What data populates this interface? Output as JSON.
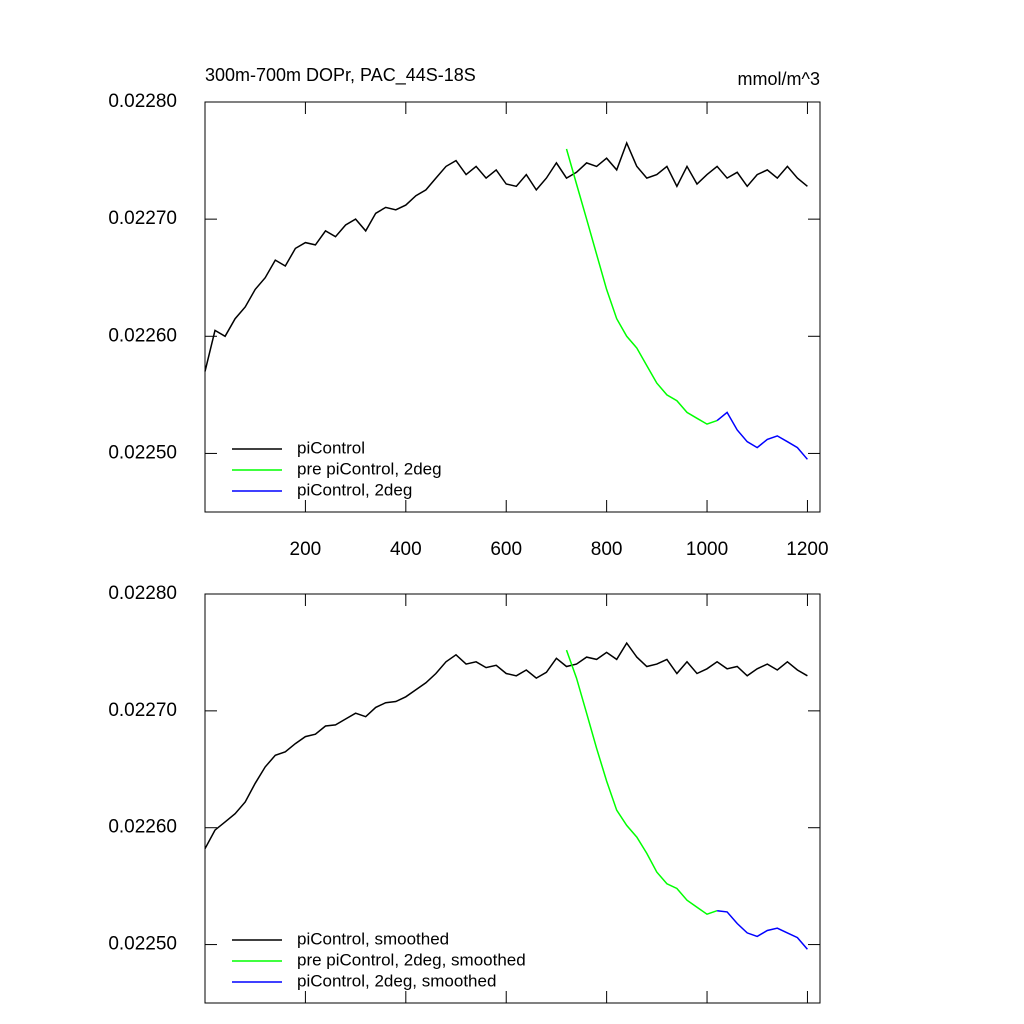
{
  "chart_data": [
    {
      "type": "line",
      "title": "300m-700m DOPr, PAC_44S-18S",
      "units": "mmol/m^3",
      "xlim": [
        0,
        1225
      ],
      "xticks": [
        200,
        400,
        600,
        800,
        1000,
        1200
      ],
      "xtick_labels": true,
      "ylim": [
        0.02245,
        0.0228
      ],
      "yticks": [
        {
          "value": 0.0225,
          "label": "0.02250"
        },
        {
          "value": 0.0226,
          "label": "0.02260"
        },
        {
          "value": 0.0227,
          "label": "0.02270"
        },
        {
          "value": 0.0228,
          "label": "0.02280"
        }
      ],
      "legend": "lower left",
      "series": [
        {
          "name": "piControl",
          "color": "#000000",
          "x": [
            0,
            20,
            40,
            60,
            80,
            100,
            120,
            140,
            160,
            180,
            200,
            220,
            240,
            260,
            280,
            300,
            320,
            340,
            360,
            380,
            400,
            420,
            440,
            460,
            480,
            500,
            520,
            540,
            560,
            580,
            600,
            620,
            640,
            660,
            680,
            700,
            720,
            740,
            760,
            780,
            800,
            820,
            840,
            860,
            880,
            900,
            920,
            940,
            960,
            980,
            1000,
            1020,
            1040,
            1060,
            1080,
            1100,
            1120,
            1140,
            1160,
            1180,
            1200
          ],
          "values": [
            0.02257,
            0.022605,
            0.0226,
            0.022615,
            0.022625,
            0.02264,
            0.02265,
            0.022665,
            0.02266,
            0.022675,
            0.02268,
            0.022678,
            0.02269,
            0.022685,
            0.022695,
            0.0227,
            0.02269,
            0.022705,
            0.02271,
            0.022708,
            0.022712,
            0.02272,
            0.022725,
            0.022735,
            0.022745,
            0.02275,
            0.022738,
            0.022745,
            0.022735,
            0.022742,
            0.02273,
            0.022728,
            0.022738,
            0.022725,
            0.022735,
            0.022748,
            0.022735,
            0.02274,
            0.022748,
            0.022745,
            0.022752,
            0.022742,
            0.022765,
            0.022745,
            0.022735,
            0.022738,
            0.022745,
            0.022728,
            0.022745,
            0.02273,
            0.022738,
            0.022745,
            0.022735,
            0.02274,
            0.022728,
            0.022738,
            0.022742,
            0.022735,
            0.022745,
            0.022735,
            0.022728
          ]
        },
        {
          "name": "pre piControl, 2deg",
          "color": "#00ff00",
          "x": [
            720,
            740,
            760,
            780,
            800,
            820,
            840,
            860,
            880,
            900,
            920,
            940,
            960,
            980,
            1000,
            1020
          ],
          "values": [
            0.02276,
            0.02273,
            0.0227,
            0.02267,
            0.02264,
            0.022615,
            0.0226,
            0.02259,
            0.022575,
            0.02256,
            0.02255,
            0.022545,
            0.022535,
            0.02253,
            0.022525,
            0.022528
          ]
        },
        {
          "name": "piControl, 2deg",
          "color": "#0000ff",
          "x": [
            1020,
            1040,
            1060,
            1080,
            1100,
            1120,
            1140,
            1160,
            1180,
            1200
          ],
          "values": [
            0.022528,
            0.022535,
            0.02252,
            0.02251,
            0.022505,
            0.022512,
            0.022515,
            0.02251,
            0.022505,
            0.022495
          ]
        }
      ]
    },
    {
      "type": "line",
      "xlim": [
        0,
        1225
      ],
      "xticks": [
        200,
        400,
        600,
        800,
        1000,
        1200
      ],
      "xtick_labels": false,
      "ylim": [
        0.02245,
        0.0228
      ],
      "yticks": [
        {
          "value": 0.0225,
          "label": "0.02250"
        },
        {
          "value": 0.0226,
          "label": "0.02260"
        },
        {
          "value": 0.0227,
          "label": "0.02270"
        },
        {
          "value": 0.0228,
          "label": "0.02280"
        }
      ],
      "legend": "lower left",
      "series": [
        {
          "name": "piControl, smoothed",
          "color": "#000000",
          "x": [
            0,
            20,
            40,
            60,
            80,
            100,
            120,
            140,
            160,
            180,
            200,
            220,
            240,
            260,
            280,
            300,
            320,
            340,
            360,
            380,
            400,
            420,
            440,
            460,
            480,
            500,
            520,
            540,
            560,
            580,
            600,
            620,
            640,
            660,
            680,
            700,
            720,
            740,
            760,
            780,
            800,
            820,
            840,
            860,
            880,
            900,
            920,
            940,
            960,
            980,
            1000,
            1020,
            1040,
            1060,
            1080,
            1100,
            1120,
            1140,
            1160,
            1180,
            1200
          ],
          "values": [
            0.022582,
            0.022598,
            0.022605,
            0.022612,
            0.022622,
            0.022638,
            0.022652,
            0.022662,
            0.022665,
            0.022672,
            0.022678,
            0.02268,
            0.022687,
            0.022688,
            0.022693,
            0.022698,
            0.022695,
            0.022703,
            0.022707,
            0.022708,
            0.022712,
            0.022718,
            0.022724,
            0.022732,
            0.022742,
            0.022748,
            0.02274,
            0.022742,
            0.022737,
            0.022739,
            0.022732,
            0.02273,
            0.022735,
            0.022728,
            0.022733,
            0.022745,
            0.022738,
            0.02274,
            0.022746,
            0.022744,
            0.02275,
            0.022744,
            0.022758,
            0.022746,
            0.022738,
            0.02274,
            0.022744,
            0.022732,
            0.022742,
            0.022732,
            0.022736,
            0.022742,
            0.022736,
            0.022738,
            0.02273,
            0.022736,
            0.02274,
            0.022735,
            0.022742,
            0.022735,
            0.02273
          ]
        },
        {
          "name": "pre piControl, 2deg, smoothed",
          "color": "#00ff00",
          "x": [
            720,
            740,
            760,
            780,
            800,
            820,
            840,
            860,
            880,
            900,
            920,
            940,
            960,
            980,
            1000,
            1020
          ],
          "values": [
            0.022752,
            0.022728,
            0.022698,
            0.022668,
            0.02264,
            0.022615,
            0.022602,
            0.022592,
            0.022578,
            0.022562,
            0.022552,
            0.022548,
            0.022538,
            0.022532,
            0.022526,
            0.022529
          ]
        },
        {
          "name": "piControl, 2deg, smoothed",
          "color": "#0000ff",
          "x": [
            1020,
            1040,
            1060,
            1080,
            1100,
            1120,
            1140,
            1160,
            1180,
            1200
          ],
          "values": [
            0.022529,
            0.022528,
            0.022518,
            0.02251,
            0.022507,
            0.022512,
            0.022514,
            0.02251,
            0.022506,
            0.022496
          ]
        }
      ]
    }
  ]
}
